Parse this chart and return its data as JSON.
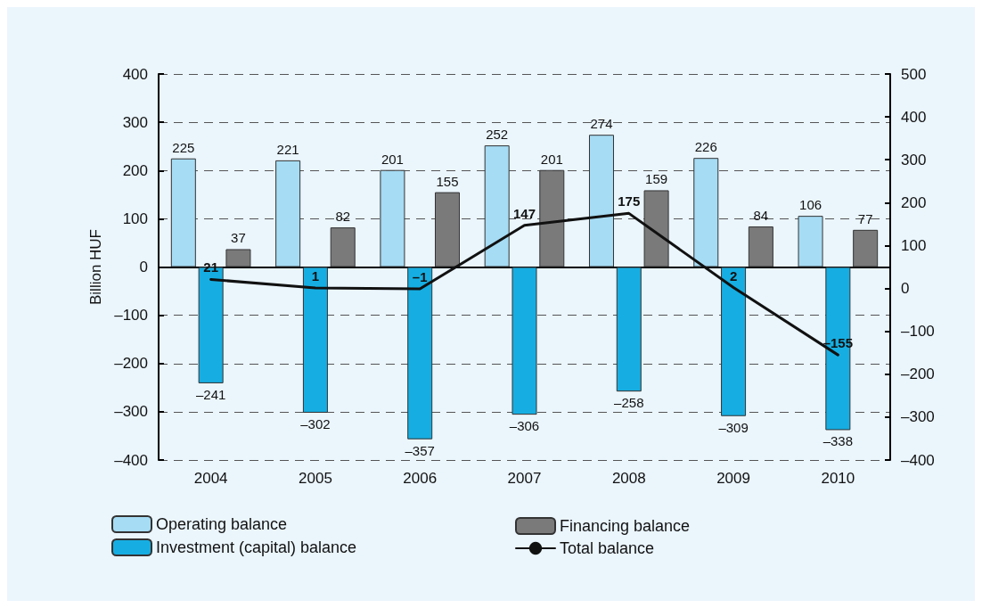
{
  "chart_data": {
    "type": "bar",
    "ylabel": "Billion HUF",
    "categories": [
      "2004",
      "2005",
      "2006",
      "2007",
      "2008",
      "2009",
      "2010"
    ],
    "series": [
      {
        "name": "Operating balance",
        "color": "#a6dcf4",
        "values": [
          225,
          221,
          201,
          252,
          274,
          226,
          106
        ],
        "value_labels": [
          "225",
          "221",
          "201",
          "252",
          "274",
          "226",
          "106"
        ]
      },
      {
        "name": "Investment (capital) balance",
        "color": "#16aee2",
        "values": [
          -241,
          -302,
          -357,
          -306,
          -258,
          -309,
          -338
        ],
        "value_labels": [
          "–241",
          "–302",
          "–357",
          "–306",
          "–258",
          "–309",
          "–338"
        ]
      },
      {
        "name": "Financing balance",
        "color": "#7a7a7a",
        "values": [
          37,
          82,
          155,
          201,
          159,
          84,
          77
        ],
        "value_labels": [
          "37",
          "82",
          "155",
          "201",
          "159",
          "84",
          "77"
        ]
      },
      {
        "name": "Total balance",
        "type": "line",
        "axis": "y2",
        "color": "#111111",
        "values": [
          21,
          1,
          -1,
          147,
          175,
          2,
          -155
        ],
        "value_labels": [
          "21",
          "1",
          "–1",
          "147",
          "175",
          "2",
          "–155"
        ],
        "marker": "none",
        "line_style": "solid"
      }
    ],
    "ylim": [
      -400,
      400
    ],
    "yticks": [
      {
        "value": -400,
        "label": "–400"
      },
      {
        "value": -300,
        "label": "–300"
      },
      {
        "value": -200,
        "label": "–200"
      },
      {
        "value": -100,
        "label": "–100"
      },
      0,
      100,
      200,
      300,
      400
    ],
    "y2lim": [
      -400,
      500
    ],
    "y2ticks": [
      {
        "value": -400,
        "label": "–400"
      },
      {
        "value": -300,
        "label": "–300"
      },
      {
        "value": -200,
        "label": "–200"
      },
      {
        "value": -100,
        "label": "–100"
      },
      0,
      100,
      200,
      300,
      400,
      500
    ],
    "grid": "y",
    "legend": "bottom"
  }
}
